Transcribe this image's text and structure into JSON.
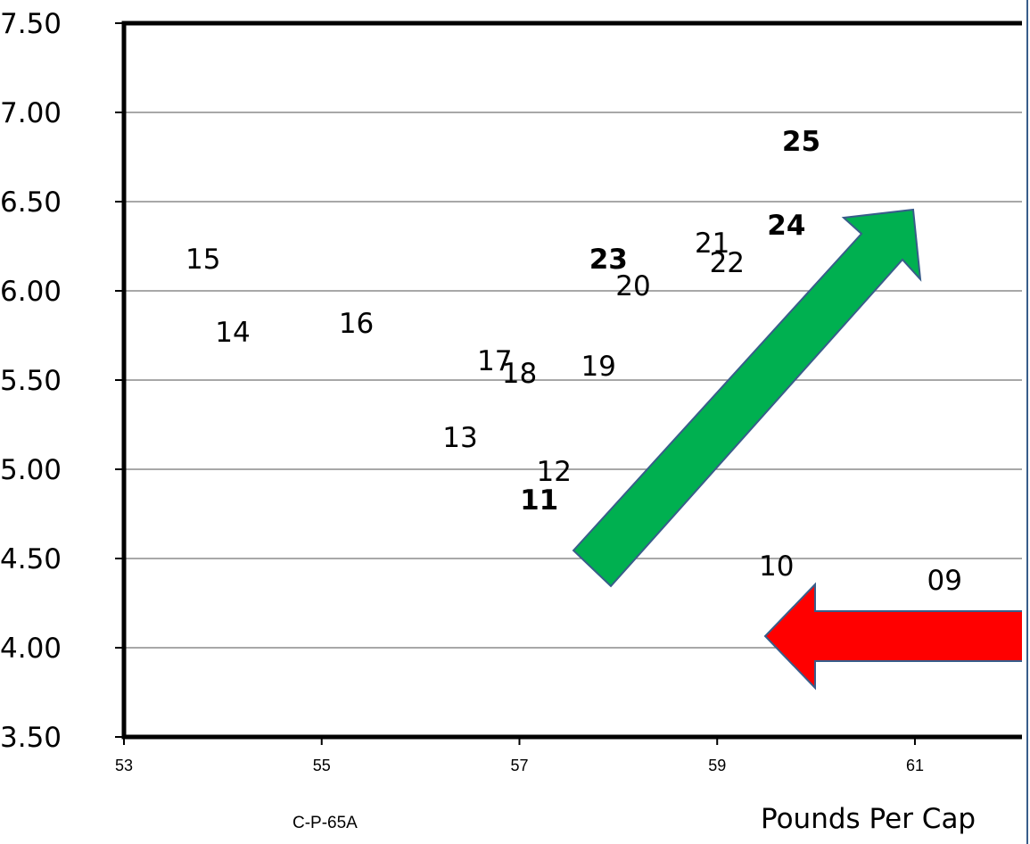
{
  "chart_data": {
    "type": "scatter",
    "title": "",
    "xlabel": "Pounds Per Cap",
    "ylabel": "",
    "xlim": [
      53,
      62.2
    ],
    "ylim": [
      3.5,
      7.5
    ],
    "x_ticks": [
      "53",
      "55",
      "57",
      "59",
      "61"
    ],
    "y_ticks": [
      "3.50",
      "4.00",
      "4.50",
      "5.00",
      "5.50",
      "6.00",
      "6.50",
      "7.00",
      "7.50"
    ],
    "grid": "horizontal",
    "points": [
      {
        "label": "09",
        "x": 61.3,
        "y": 4.38,
        "color": "#000000",
        "bold": false
      },
      {
        "label": "10",
        "x": 59.6,
        "y": 4.46,
        "color": "#000000",
        "bold": false
      },
      {
        "label": "11",
        "x": 57.2,
        "y": 4.83,
        "color": "#7030A0",
        "bold": true
      },
      {
        "label": "12",
        "x": 57.35,
        "y": 4.99,
        "color": "#000000",
        "bold": false
      },
      {
        "label": "13",
        "x": 56.4,
        "y": 5.18,
        "color": "#000000",
        "bold": false
      },
      {
        "label": "14",
        "x": 54.1,
        "y": 5.77,
        "color": "#000000",
        "bold": false
      },
      {
        "label": "15",
        "x": 53.8,
        "y": 6.18,
        "color": "#000000",
        "bold": false
      },
      {
        "label": "16",
        "x": 55.35,
        "y": 5.82,
        "color": "#000000",
        "bold": false
      },
      {
        "label": "17",
        "x": 56.75,
        "y": 5.61,
        "color": "#000000",
        "bold": false
      },
      {
        "label": "18",
        "x": 57.0,
        "y": 5.54,
        "color": "#000000",
        "bold": false
      },
      {
        "label": "19",
        "x": 57.8,
        "y": 5.58,
        "color": "#000000",
        "bold": false
      },
      {
        "label": "20",
        "x": 58.15,
        "y": 6.03,
        "color": "#000000",
        "bold": false
      },
      {
        "label": "21",
        "x": 58.95,
        "y": 6.27,
        "color": "#000000",
        "bold": false
      },
      {
        "label": "22",
        "x": 59.1,
        "y": 6.16,
        "color": "#000000",
        "bold": false
      },
      {
        "label": "23",
        "x": 57.9,
        "y": 6.18,
        "color": "#7030A0",
        "bold": true
      },
      {
        "label": "24",
        "x": 59.7,
        "y": 6.37,
        "color": "#00B050",
        "bold": true
      },
      {
        "label": "25",
        "x": 59.85,
        "y": 6.84,
        "color": "#00B050",
        "bold": true
      }
    ],
    "arrows": [
      {
        "name": "green-trend-arrow",
        "color": "#00B050",
        "direction": "up-right"
      },
      {
        "name": "red-trend-arrow",
        "color": "#FF0000",
        "direction": "left"
      }
    ]
  },
  "footer": {
    "code": "C-P-65A"
  }
}
